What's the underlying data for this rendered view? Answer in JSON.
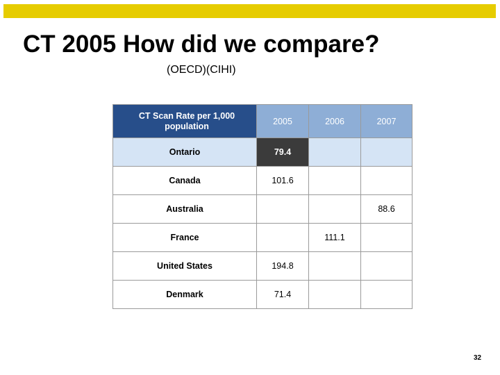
{
  "slide": {
    "title": "CT 2005 How did we compare?",
    "subtitle": "(OECD)(CIHI)",
    "page_number": "32",
    "accent_color": "#e6cc00"
  },
  "table": {
    "header": {
      "rate": "CT Scan Rate per 1,000 population",
      "y2005": "2005",
      "y2006": "2006",
      "y2007": "2007"
    },
    "rows": [
      {
        "country": "Ontario",
        "v2005": "79.4",
        "v2006": "",
        "v2007": ""
      },
      {
        "country": "Canada",
        "v2005": "101.6",
        "v2006": "",
        "v2007": ""
      },
      {
        "country": "Australia",
        "v2005": "",
        "v2006": "",
        "v2007": "88.6"
      },
      {
        "country": "France",
        "v2005": "",
        "v2006": "111.1",
        "v2007": ""
      },
      {
        "country": "United States",
        "v2005": "194.8",
        "v2006": "",
        "v2007": ""
      },
      {
        "country": "Denmark",
        "v2005": "71.4",
        "v2006": "",
        "v2007": ""
      }
    ]
  }
}
